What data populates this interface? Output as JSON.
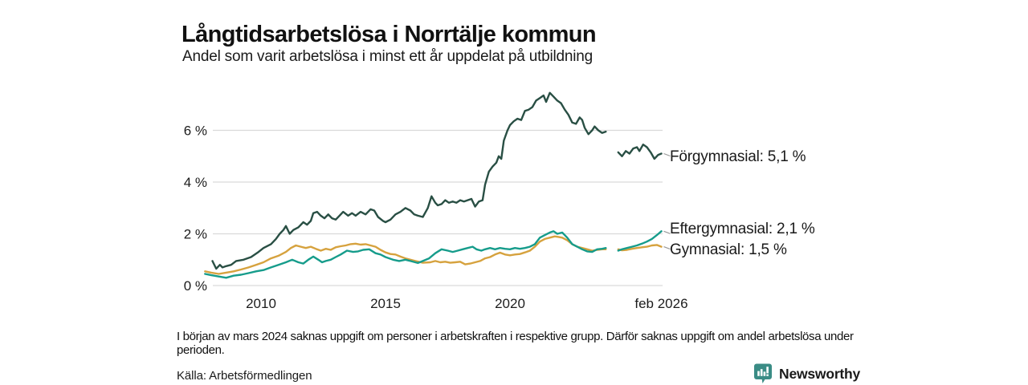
{
  "header": {
    "title": "Långtidsarbetslösa i Norrtälje kommun",
    "subtitle": "Andel som varit arbetslösa i minst ett år uppdelat på utbildning"
  },
  "chart_data": {
    "type": "line",
    "title": "Långtidsarbetslösa i Norrtälje kommun",
    "subtitle": "Andel som varit arbetslösa i minst ett år uppdelat på utbildning",
    "xlabel": "",
    "ylabel": "",
    "x_unit": "decimal year (monthly data)",
    "xlim": [
      2007.7,
      2026.2
    ],
    "ylim": [
      0,
      7.6
    ],
    "grid": "horizontal",
    "legend_position": "right-of-line-ends",
    "gap_note": "series break around early 2024 (uppgift saknas)",
    "grid_color": "#dadada",
    "text_color": "#1c1c1c",
    "yticks": [
      {
        "v": 0,
        "label": "0 %"
      },
      {
        "v": 2,
        "label": "2 %"
      },
      {
        "v": 4,
        "label": "4 %"
      },
      {
        "v": 6,
        "label": "6 %"
      }
    ],
    "xticks": [
      {
        "v": 2010,
        "label": "2010"
      },
      {
        "v": 2015,
        "label": "2015"
      },
      {
        "v": 2020,
        "label": "2020"
      },
      {
        "v": 2026.08,
        "label": "feb 2026"
      }
    ],
    "series": [
      {
        "name": "Förgymnasial",
        "label": "Förgymnasial: 5,1 %",
        "latest_value": "5,1 %",
        "color": "#294f44",
        "points": [
          [
            2008.05,
            0.95
          ],
          [
            2008.2,
            0.65
          ],
          [
            2008.35,
            0.8
          ],
          [
            2008.45,
            0.7
          ],
          [
            2008.6,
            0.75
          ],
          [
            2008.8,
            0.8
          ],
          [
            2009.0,
            0.95
          ],
          [
            2009.3,
            1.0
          ],
          [
            2009.6,
            1.1
          ],
          [
            2009.9,
            1.3
          ],
          [
            2010.1,
            1.45
          ],
          [
            2010.4,
            1.6
          ],
          [
            2010.6,
            1.8
          ],
          [
            2010.75,
            2.0
          ],
          [
            2010.9,
            2.15
          ],
          [
            2011.0,
            2.3
          ],
          [
            2011.15,
            2.0
          ],
          [
            2011.3,
            2.15
          ],
          [
            2011.5,
            2.25
          ],
          [
            2011.7,
            2.45
          ],
          [
            2011.85,
            2.35
          ],
          [
            2012.0,
            2.5
          ],
          [
            2012.1,
            2.8
          ],
          [
            2012.25,
            2.85
          ],
          [
            2012.4,
            2.7
          ],
          [
            2012.55,
            2.6
          ],
          [
            2012.7,
            2.75
          ],
          [
            2012.85,
            2.6
          ],
          [
            2013.0,
            2.55
          ],
          [
            2013.15,
            2.7
          ],
          [
            2013.3,
            2.85
          ],
          [
            2013.5,
            2.7
          ],
          [
            2013.65,
            2.8
          ],
          [
            2013.8,
            2.7
          ],
          [
            2014.0,
            2.85
          ],
          [
            2014.2,
            2.75
          ],
          [
            2014.4,
            2.95
          ],
          [
            2014.55,
            2.9
          ],
          [
            2014.7,
            2.65
          ],
          [
            2014.9,
            2.5
          ],
          [
            2015.0,
            2.45
          ],
          [
            2015.2,
            2.55
          ],
          [
            2015.4,
            2.75
          ],
          [
            2015.6,
            2.85
          ],
          [
            2015.8,
            3.0
          ],
          [
            2016.0,
            2.9
          ],
          [
            2016.15,
            2.75
          ],
          [
            2016.3,
            2.7
          ],
          [
            2016.5,
            2.65
          ],
          [
            2016.7,
            3.0
          ],
          [
            2016.85,
            3.45
          ],
          [
            2017.0,
            3.2
          ],
          [
            2017.1,
            3.1
          ],
          [
            2017.25,
            3.15
          ],
          [
            2017.4,
            3.3
          ],
          [
            2017.55,
            3.2
          ],
          [
            2017.7,
            3.25
          ],
          [
            2017.85,
            3.2
          ],
          [
            2018.0,
            3.3
          ],
          [
            2018.15,
            3.25
          ],
          [
            2018.3,
            3.3
          ],
          [
            2018.45,
            3.35
          ],
          [
            2018.6,
            3.05
          ],
          [
            2018.75,
            3.25
          ],
          [
            2018.9,
            3.3
          ],
          [
            2019.0,
            3.9
          ],
          [
            2019.15,
            4.4
          ],
          [
            2019.3,
            4.6
          ],
          [
            2019.45,
            4.75
          ],
          [
            2019.55,
            5.0
          ],
          [
            2019.65,
            4.9
          ],
          [
            2019.75,
            5.6
          ],
          [
            2019.9,
            6.0
          ],
          [
            2020.0,
            6.2
          ],
          [
            2020.15,
            6.35
          ],
          [
            2020.3,
            6.45
          ],
          [
            2020.45,
            6.4
          ],
          [
            2020.6,
            6.75
          ],
          [
            2020.75,
            6.8
          ],
          [
            2020.9,
            6.9
          ],
          [
            2021.05,
            7.15
          ],
          [
            2021.2,
            7.25
          ],
          [
            2021.35,
            7.35
          ],
          [
            2021.45,
            7.1
          ],
          [
            2021.6,
            7.45
          ],
          [
            2021.75,
            7.3
          ],
          [
            2021.9,
            7.15
          ],
          [
            2022.05,
            7.05
          ],
          [
            2022.2,
            6.8
          ],
          [
            2022.35,
            6.6
          ],
          [
            2022.5,
            6.3
          ],
          [
            2022.65,
            6.25
          ],
          [
            2022.8,
            6.5
          ],
          [
            2022.9,
            6.4
          ],
          [
            2023.0,
            6.1
          ],
          [
            2023.15,
            5.85
          ],
          [
            2023.3,
            6.0
          ],
          [
            2023.4,
            6.15
          ],
          [
            2023.55,
            6.0
          ],
          [
            2023.7,
            5.9
          ],
          [
            2023.85,
            5.95
          ],
          [
            2024.1,
            null
          ],
          [
            2024.35,
            5.15
          ],
          [
            2024.5,
            5.0
          ],
          [
            2024.65,
            5.2
          ],
          [
            2024.8,
            5.1
          ],
          [
            2024.95,
            5.3
          ],
          [
            2025.1,
            5.35
          ],
          [
            2025.2,
            5.2
          ],
          [
            2025.35,
            5.45
          ],
          [
            2025.5,
            5.35
          ],
          [
            2025.65,
            5.15
          ],
          [
            2025.8,
            4.9
          ],
          [
            2025.95,
            5.05
          ],
          [
            2026.08,
            5.1
          ]
        ]
      },
      {
        "name": "Eftergymnasial",
        "label": "Eftergymnasial: 2,1 %",
        "latest_value": "2,1 %",
        "color": "#169c8b",
        "points": [
          [
            2007.75,
            0.45
          ],
          [
            2008.0,
            0.4
          ],
          [
            2008.3,
            0.35
          ],
          [
            2008.6,
            0.3
          ],
          [
            2008.9,
            0.38
          ],
          [
            2009.2,
            0.42
          ],
          [
            2009.5,
            0.48
          ],
          [
            2009.8,
            0.55
          ],
          [
            2010.1,
            0.6
          ],
          [
            2010.4,
            0.7
          ],
          [
            2010.7,
            0.8
          ],
          [
            2011.0,
            0.9
          ],
          [
            2011.25,
            1.0
          ],
          [
            2011.5,
            0.9
          ],
          [
            2011.7,
            0.85
          ],
          [
            2011.9,
            1.0
          ],
          [
            2012.1,
            1.12
          ],
          [
            2012.3,
            1.0
          ],
          [
            2012.45,
            0.9
          ],
          [
            2012.6,
            0.95
          ],
          [
            2012.8,
            1.0
          ],
          [
            2013.0,
            1.1
          ],
          [
            2013.2,
            1.2
          ],
          [
            2013.45,
            1.35
          ],
          [
            2013.7,
            1.3
          ],
          [
            2013.9,
            1.32
          ],
          [
            2014.1,
            1.38
          ],
          [
            2014.35,
            1.4
          ],
          [
            2014.6,
            1.25
          ],
          [
            2014.8,
            1.2
          ],
          [
            2015.0,
            1.1
          ],
          [
            2015.3,
            1.0
          ],
          [
            2015.55,
            0.95
          ],
          [
            2015.8,
            1.0
          ],
          [
            2016.0,
            0.95
          ],
          [
            2016.3,
            0.87
          ],
          [
            2016.5,
            0.95
          ],
          [
            2016.75,
            1.05
          ],
          [
            2017.0,
            1.25
          ],
          [
            2017.25,
            1.4
          ],
          [
            2017.5,
            1.35
          ],
          [
            2017.7,
            1.3
          ],
          [
            2017.9,
            1.35
          ],
          [
            2018.1,
            1.4
          ],
          [
            2018.3,
            1.45
          ],
          [
            2018.5,
            1.5
          ],
          [
            2018.65,
            1.4
          ],
          [
            2018.85,
            1.35
          ],
          [
            2019.0,
            1.4
          ],
          [
            2019.2,
            1.45
          ],
          [
            2019.4,
            1.4
          ],
          [
            2019.6,
            1.45
          ],
          [
            2019.8,
            1.42
          ],
          [
            2020.0,
            1.4
          ],
          [
            2020.2,
            1.45
          ],
          [
            2020.4,
            1.42
          ],
          [
            2020.6,
            1.45
          ],
          [
            2020.8,
            1.5
          ],
          [
            2021.0,
            1.6
          ],
          [
            2021.2,
            1.85
          ],
          [
            2021.4,
            1.95
          ],
          [
            2021.6,
            2.05
          ],
          [
            2021.75,
            2.1
          ],
          [
            2021.9,
            2.0
          ],
          [
            2022.1,
            2.05
          ],
          [
            2022.3,
            1.85
          ],
          [
            2022.5,
            1.6
          ],
          [
            2022.7,
            1.5
          ],
          [
            2022.9,
            1.4
          ],
          [
            2023.1,
            1.32
          ],
          [
            2023.3,
            1.3
          ],
          [
            2023.5,
            1.4
          ],
          [
            2023.7,
            1.42
          ],
          [
            2023.85,
            1.45
          ],
          [
            2024.1,
            null
          ],
          [
            2024.35,
            1.35
          ],
          [
            2024.5,
            1.4
          ],
          [
            2024.7,
            1.45
          ],
          [
            2024.9,
            1.5
          ],
          [
            2025.1,
            1.55
          ],
          [
            2025.3,
            1.62
          ],
          [
            2025.5,
            1.7
          ],
          [
            2025.7,
            1.8
          ],
          [
            2025.9,
            1.95
          ],
          [
            2026.08,
            2.1
          ]
        ]
      },
      {
        "name": "Gymnasial",
        "label": "Gymnasial: 1,5 %",
        "latest_value": "1,5 %",
        "color": "#d6a23e",
        "points": [
          [
            2007.75,
            0.55
          ],
          [
            2008.0,
            0.5
          ],
          [
            2008.3,
            0.45
          ],
          [
            2008.6,
            0.5
          ],
          [
            2008.9,
            0.55
          ],
          [
            2009.2,
            0.62
          ],
          [
            2009.5,
            0.7
          ],
          [
            2009.8,
            0.8
          ],
          [
            2010.1,
            0.9
          ],
          [
            2010.4,
            1.05
          ],
          [
            2010.7,
            1.15
          ],
          [
            2011.0,
            1.3
          ],
          [
            2011.2,
            1.45
          ],
          [
            2011.4,
            1.55
          ],
          [
            2011.6,
            1.5
          ],
          [
            2011.8,
            1.45
          ],
          [
            2012.0,
            1.5
          ],
          [
            2012.2,
            1.42
          ],
          [
            2012.4,
            1.35
          ],
          [
            2012.6,
            1.42
          ],
          [
            2012.8,
            1.38
          ],
          [
            2013.0,
            1.48
          ],
          [
            2013.2,
            1.52
          ],
          [
            2013.4,
            1.55
          ],
          [
            2013.6,
            1.6
          ],
          [
            2013.8,
            1.62
          ],
          [
            2014.0,
            1.58
          ],
          [
            2014.2,
            1.6
          ],
          [
            2014.4,
            1.55
          ],
          [
            2014.6,
            1.5
          ],
          [
            2014.8,
            1.38
          ],
          [
            2015.0,
            1.28
          ],
          [
            2015.2,
            1.22
          ],
          [
            2015.4,
            1.2
          ],
          [
            2015.6,
            1.12
          ],
          [
            2015.8,
            1.05
          ],
          [
            2016.0,
            1.0
          ],
          [
            2016.2,
            0.95
          ],
          [
            2016.5,
            0.88
          ],
          [
            2016.8,
            0.9
          ],
          [
            2017.0,
            0.95
          ],
          [
            2017.2,
            0.9
          ],
          [
            2017.4,
            0.92
          ],
          [
            2017.6,
            0.88
          ],
          [
            2017.8,
            0.9
          ],
          [
            2018.0,
            0.92
          ],
          [
            2018.2,
            0.82
          ],
          [
            2018.4,
            0.85
          ],
          [
            2018.6,
            0.9
          ],
          [
            2018.8,
            0.95
          ],
          [
            2019.0,
            1.05
          ],
          [
            2019.2,
            1.1
          ],
          [
            2019.4,
            1.2
          ],
          [
            2019.6,
            1.27
          ],
          [
            2019.8,
            1.2
          ],
          [
            2020.0,
            1.17
          ],
          [
            2020.2,
            1.2
          ],
          [
            2020.4,
            1.22
          ],
          [
            2020.6,
            1.28
          ],
          [
            2020.8,
            1.35
          ],
          [
            2021.0,
            1.5
          ],
          [
            2021.2,
            1.7
          ],
          [
            2021.4,
            1.8
          ],
          [
            2021.6,
            1.85
          ],
          [
            2021.8,
            1.9
          ],
          [
            2021.95,
            1.88
          ],
          [
            2022.1,
            1.85
          ],
          [
            2022.3,
            1.75
          ],
          [
            2022.5,
            1.6
          ],
          [
            2022.7,
            1.5
          ],
          [
            2022.9,
            1.45
          ],
          [
            2023.1,
            1.4
          ],
          [
            2023.3,
            1.35
          ],
          [
            2023.5,
            1.38
          ],
          [
            2023.7,
            1.4
          ],
          [
            2023.85,
            1.4
          ],
          [
            2024.1,
            null
          ],
          [
            2024.35,
            1.4
          ],
          [
            2024.5,
            1.36
          ],
          [
            2024.7,
            1.38
          ],
          [
            2024.9,
            1.42
          ],
          [
            2025.1,
            1.45
          ],
          [
            2025.3,
            1.48
          ],
          [
            2025.5,
            1.5
          ],
          [
            2025.7,
            1.55
          ],
          [
            2025.9,
            1.57
          ],
          [
            2026.08,
            1.5
          ]
        ]
      }
    ]
  },
  "footnote": {
    "text": "I början av mars 2024 saknas uppgift om personer i arbetskraften i respektive grupp. Därför saknas uppgift om andel arbetslösa under perioden."
  },
  "source": {
    "label": "Källa: Arbetsförmedlingen"
  },
  "branding": {
    "wordmark": "Newsworthy",
    "accent": "#3d918a"
  }
}
